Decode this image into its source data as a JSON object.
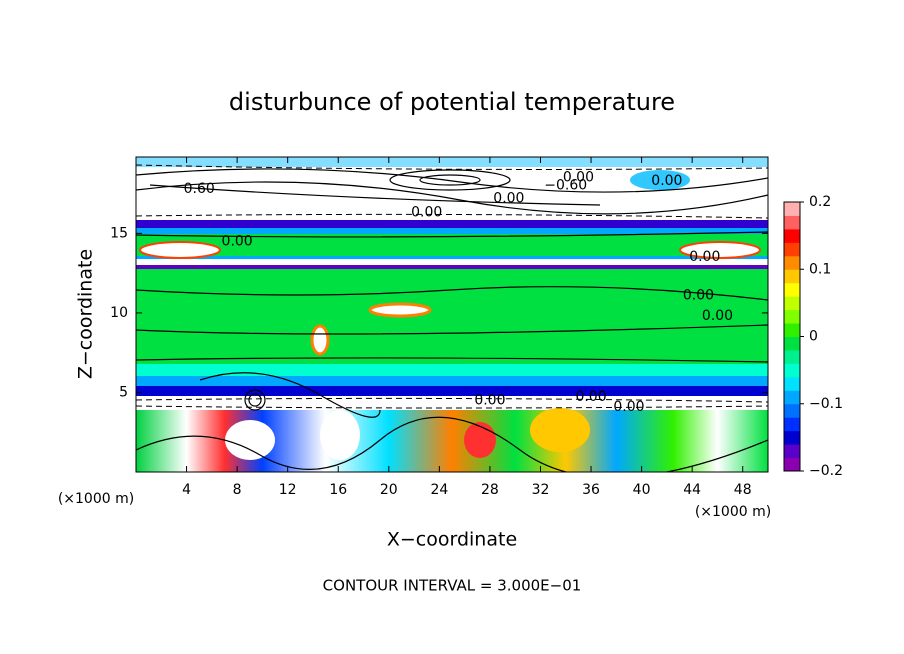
{
  "chart_data": {
    "type": "contour",
    "title": "disturbunce of potential temperature",
    "xlabel": "X−coordinate",
    "ylabel": "Z−coordinate",
    "x_unit": "(×1000 m)",
    "y_unit": "(×1000 m)",
    "footer": "CONTOUR INTERVAL = 3.000E−01",
    "xlim": [
      0,
      50
    ],
    "ylim": [
      0,
      19.8
    ],
    "xticks": [
      4,
      8,
      12,
      16,
      20,
      24,
      28,
      32,
      36,
      40,
      44,
      48
    ],
    "yticks": [
      5,
      10,
      15
    ],
    "colorbar": {
      "lim": [
        -0.2,
        0.2
      ],
      "ticks": [
        {
          "value": -0.2,
          "label": "−0.2"
        },
        {
          "value": -0.1,
          "label": "−0.1"
        },
        0,
        0.1,
        0.2
      ],
      "colors": [
        "#8a00b0",
        "#5a00c8",
        "#0000d0",
        "#0030ff",
        "#0070ff",
        "#00a8ff",
        "#00e0ff",
        "#00ffd0",
        "#00f090",
        "#00e040",
        "#30f000",
        "#80ff00",
        "#c0ff00",
        "#ffff00",
        "#ffc800",
        "#ff8c00",
        "#ff4000",
        "#ff0000",
        "#ff6060",
        "#ffb0b0"
      ]
    },
    "contour_labels": [
      {
        "x": 35,
        "y": 18.5,
        "label": "0.00"
      },
      {
        "x": 34,
        "y": 18.0,
        "label": "−0.60"
      },
      {
        "x": 42,
        "y": 18.3,
        "label": "0.00"
      },
      {
        "x": 5,
        "y": 17.8,
        "label": "0.60"
      },
      {
        "x": 23,
        "y": 16.3,
        "label": "0.00"
      },
      {
        "x": 29.5,
        "y": 17.2,
        "label": "0.00"
      },
      {
        "x": 8,
        "y": 14.5,
        "label": "0.00"
      },
      {
        "x": 45,
        "y": 13.5,
        "label": "0.00"
      },
      {
        "x": 44.5,
        "y": 11.1,
        "label": "0.00"
      },
      {
        "x": 46,
        "y": 9.8,
        "label": "0.00"
      },
      {
        "x": 28,
        "y": 4.5,
        "label": "0.00"
      },
      {
        "x": 36,
        "y": 4.7,
        "label": "0.00"
      },
      {
        "x": 39,
        "y": 4.1,
        "label": "0.00"
      }
    ]
  }
}
